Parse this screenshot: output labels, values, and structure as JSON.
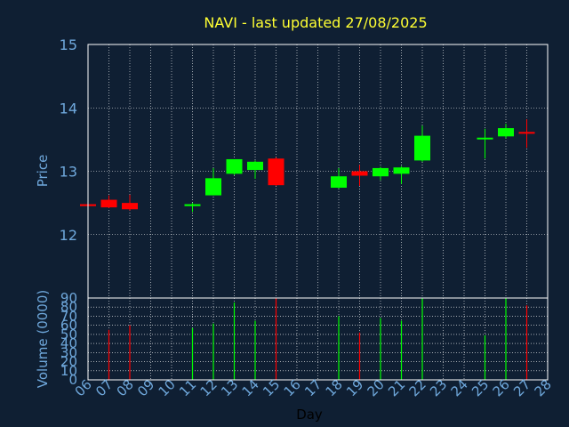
{
  "colors": {
    "background": "#0f1f33",
    "title": "#ffff33",
    "axis_text": "#6fa8dc",
    "frame": "#ffffff",
    "grid": "#ffffff",
    "up": "#00ff00",
    "down": "#ff0000",
    "xlabel": "#000000"
  },
  "chart_data": [
    {
      "type": "candlestick",
      "title": "NAVI - last updated 27/08/2025",
      "ylabel": "Price",
      "ylim": [
        11,
        15
      ],
      "yticks": [
        12,
        13,
        14,
        15
      ],
      "grid": true,
      "x": [
        "06",
        "07",
        "08",
        "11",
        "12",
        "13",
        "14",
        "15",
        "18",
        "19",
        "20",
        "21",
        "22",
        "25",
        "26",
        "27"
      ],
      "open": [
        12.48,
        12.55,
        12.5,
        12.45,
        12.62,
        12.96,
        13.02,
        13.2,
        12.74,
        13.0,
        12.92,
        12.96,
        13.17,
        13.52,
        13.55,
        13.62
      ],
      "high": [
        12.5,
        12.62,
        12.63,
        12.5,
        13.05,
        13.19,
        13.17,
        13.22,
        13.05,
        13.1,
        13.07,
        13.08,
        13.72,
        13.67,
        13.75,
        13.82
      ],
      "low": [
        12.45,
        12.42,
        12.38,
        12.36,
        12.62,
        12.94,
        12.88,
        12.77,
        12.73,
        12.77,
        12.86,
        12.8,
        13.15,
        13.2,
        13.52,
        13.37
      ],
      "close": [
        12.45,
        12.43,
        12.4,
        12.48,
        12.89,
        13.19,
        13.15,
        12.78,
        12.92,
        12.93,
        13.05,
        13.06,
        13.56,
        13.53,
        13.68,
        13.61
      ]
    },
    {
      "type": "bar",
      "ylabel": "Volume (0000)",
      "xlabel": "Day",
      "ylim": [
        0,
        90
      ],
      "yticks": [
        0,
        10,
        20,
        30,
        40,
        50,
        60,
        70,
        80,
        90
      ],
      "xticks": [
        "06",
        "07",
        "08",
        "09",
        "10",
        "11",
        "12",
        "13",
        "14",
        "15",
        "16",
        "17",
        "18",
        "19",
        "20",
        "21",
        "22",
        "23",
        "24",
        "25",
        "26",
        "27",
        "28"
      ],
      "grid": true,
      "x": [
        "07",
        "08",
        "11",
        "12",
        "13",
        "14",
        "15",
        "18",
        "19",
        "20",
        "21",
        "22",
        "25",
        "26",
        "27"
      ],
      "values": [
        55,
        60,
        57,
        62,
        85,
        65,
        90,
        70,
        52,
        68,
        65,
        90,
        49,
        90,
        82
      ],
      "direction": [
        "down",
        "down",
        "up",
        "up",
        "up",
        "up",
        "down",
        "up",
        "down",
        "up",
        "up",
        "up",
        "up",
        "up",
        "down"
      ]
    }
  ]
}
